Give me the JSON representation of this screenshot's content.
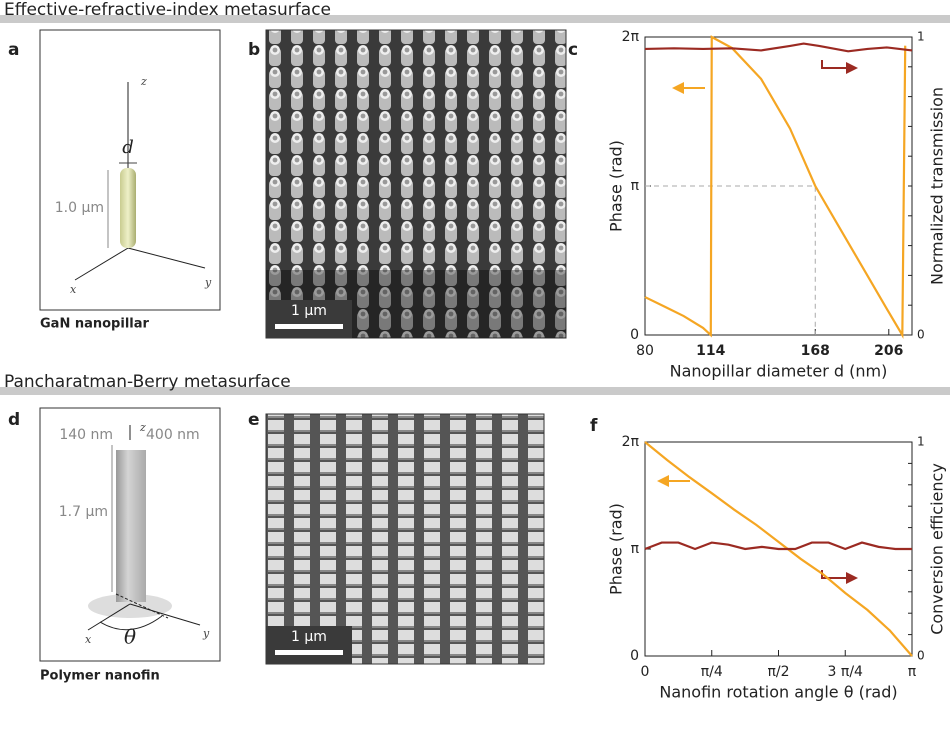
{
  "sections": [
    "Effective-refractive-index metasurface",
    "Pancharatman-Berry metasurface"
  ],
  "panels": [
    "a",
    "b",
    "c",
    "d",
    "e",
    "f"
  ],
  "illustrations": {
    "a": {
      "caption": "GaN nanopillar",
      "height": "1.0 µm",
      "diameter": "d",
      "axes": [
        "x",
        "y",
        "z"
      ]
    },
    "b": {
      "scale_bar": "1 µm"
    },
    "d": {
      "caption": "Polymer nanofin",
      "width": "140 nm",
      "length": "400 nm",
      "height": "1.7 µm",
      "angle": "θ",
      "axes": [
        "x",
        "y",
        "z"
      ]
    },
    "e": {
      "scale_bar": "1 µm"
    }
  },
  "chart_data": [
    {
      "type": "line",
      "x_label": "Nanopillar diameter d (nm)",
      "y_label": "Phase  (rad)",
      "y2_label": "Normalized transmission",
      "xlim": [
        80,
        218
      ],
      "xticks": [
        80,
        114,
        168,
        206
      ],
      "ylim": [
        0,
        6.2832
      ],
      "yticks": [
        0,
        {
          "value": 3.1416,
          "label": "π"
        },
        {
          "value": 6.2832,
          "label": "2π"
        }
      ],
      "y2lim": [
        0,
        1
      ],
      "y2ticks": [
        0,
        1
      ],
      "series": [
        {
          "color": "#f5a623",
          "x": [
            80,
            90,
            100,
            110,
            114,
            114.5,
            125,
            140,
            155,
            168,
            180,
            195,
            205,
            213,
            214.5
          ],
          "values": [
            0.8,
            0.6,
            0.4,
            0.15,
            0,
            6.2832,
            6.05,
            5.4,
            4.35,
            3.1416,
            2.3,
            1.25,
            0.55,
            0,
            6.1
          ]
        },
        {
          "color": "#9b2a22",
          "axis": "y2",
          "x": [
            80,
            95,
            110,
            125,
            140,
            155,
            162,
            170,
            185,
            195,
            205,
            218
          ],
          "values": [
            0.96,
            0.962,
            0.96,
            0.962,
            0.955,
            0.97,
            0.978,
            0.97,
            0.952,
            0.96,
            0.965,
            0.955
          ]
        }
      ]
    },
    {
      "type": "line",
      "x_label": "Nanofin rotation angle θ (rad)",
      "y_label": "Phase  (rad)",
      "y2_label": "Conversion efficiency",
      "xlim": [
        0,
        3.1416
      ],
      "xticks": [
        0,
        {
          "value": 0.7854,
          "label": "π/4"
        },
        {
          "value": 1.5708,
          "label": "π/2"
        },
        {
          "value": 2.3562,
          "label": "3 π/4"
        },
        {
          "value": 3.1416,
          "label": "π"
        }
      ],
      "ylim": [
        0,
        6.2832
      ],
      "yticks": [
        0,
        {
          "value": 3.1416,
          "label": "π"
        },
        {
          "value": 6.2832,
          "label": "2π"
        }
      ],
      "y2lim": [
        0,
        1
      ],
      "y2ticks": [
        0,
        1
      ],
      "series": [
        {
          "color": "#f5a623",
          "x": [
            0,
            0.2618,
            0.5236,
            0.7854,
            1.0472,
            1.309,
            1.5708,
            1.8326,
            2.0944,
            2.3562,
            2.618,
            2.8798,
            3.1416
          ],
          "values": [
            6.2832,
            5.75,
            5.25,
            4.78,
            4.3,
            3.85,
            3.35,
            2.85,
            2.4,
            1.85,
            1.35,
            0.75,
            0
          ]
        },
        {
          "color": "#9b2a22",
          "axis": "y2",
          "x": [
            0,
            0.19635,
            0.3927,
            0.58905,
            0.7854,
            0.98175,
            1.1781,
            1.37445,
            1.5708,
            1.76715,
            1.9635,
            2.15985,
            2.3562,
            2.55255,
            2.7489,
            2.94525,
            3.1416
          ],
          "values": [
            0.5,
            0.53,
            0.53,
            0.5,
            0.53,
            0.52,
            0.5,
            0.51,
            0.5,
            0.5,
            0.53,
            0.53,
            0.5,
            0.53,
            0.51,
            0.5,
            0.5
          ]
        }
      ]
    }
  ]
}
